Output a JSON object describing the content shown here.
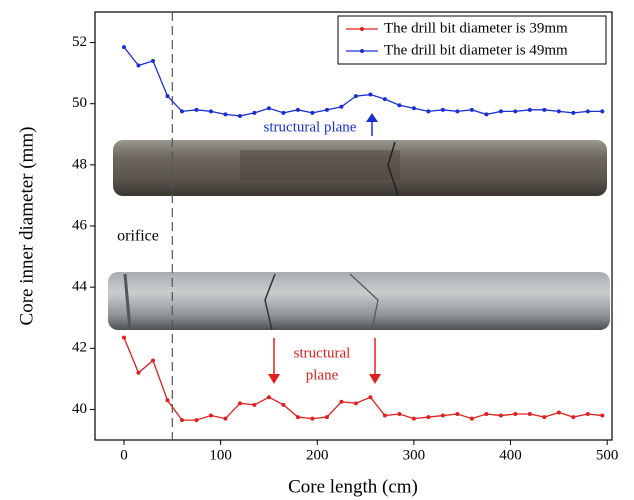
{
  "chart_data": {
    "type": "line",
    "x_label": "Core length (cm)",
    "y_label": "Core inner diameter (mm)",
    "x": [
      0,
      15,
      30,
      45,
      60,
      75,
      90,
      105,
      120,
      135,
      150,
      165,
      180,
      195,
      210,
      225,
      240,
      255,
      270,
      285,
      300,
      315,
      330,
      345,
      360,
      375,
      390,
      405,
      420,
      435,
      450,
      465,
      480,
      495
    ],
    "series": [
      {
        "name": "The drill bit diameter is 39mm",
        "color": "#e02020",
        "values": [
          42.35,
          41.2,
          41.6,
          40.3,
          39.65,
          39.65,
          39.8,
          39.7,
          40.2,
          40.15,
          40.4,
          40.15,
          39.75,
          39.7,
          39.75,
          40.25,
          40.2,
          40.4,
          39.8,
          39.85,
          39.7,
          39.75,
          39.8,
          39.85,
          39.7,
          39.85,
          39.8,
          39.85,
          39.85,
          39.75,
          39.9,
          39.75,
          39.85,
          39.8
        ]
      },
      {
        "name": "The drill bit diameter is 49mm",
        "color": "#1a2fd0",
        "values": [
          51.85,
          51.25,
          51.4,
          50.25,
          49.75,
          49.8,
          49.75,
          49.65,
          49.6,
          49.7,
          49.85,
          49.7,
          49.8,
          49.7,
          49.8,
          49.9,
          50.25,
          50.3,
          50.15,
          49.95,
          49.85,
          49.75,
          49.8,
          49.75,
          49.8,
          49.65,
          49.75,
          49.75,
          49.8,
          49.8,
          49.75,
          49.7,
          49.75,
          49.75
        ]
      }
    ],
    "xlim": [
      -30,
      505
    ],
    "xticks": [
      0,
      100,
      200,
      300,
      400,
      500
    ],
    "ylim": [
      39,
      53
    ],
    "yticks": [
      40,
      42,
      44,
      46,
      48,
      50,
      52
    ],
    "dashed_line_x": 50,
    "legend": "upper right",
    "annotations": {
      "blue": "structural plane",
      "orifice": "orifice",
      "red_line1": "structural",
      "red_line2": "plane"
    }
  }
}
